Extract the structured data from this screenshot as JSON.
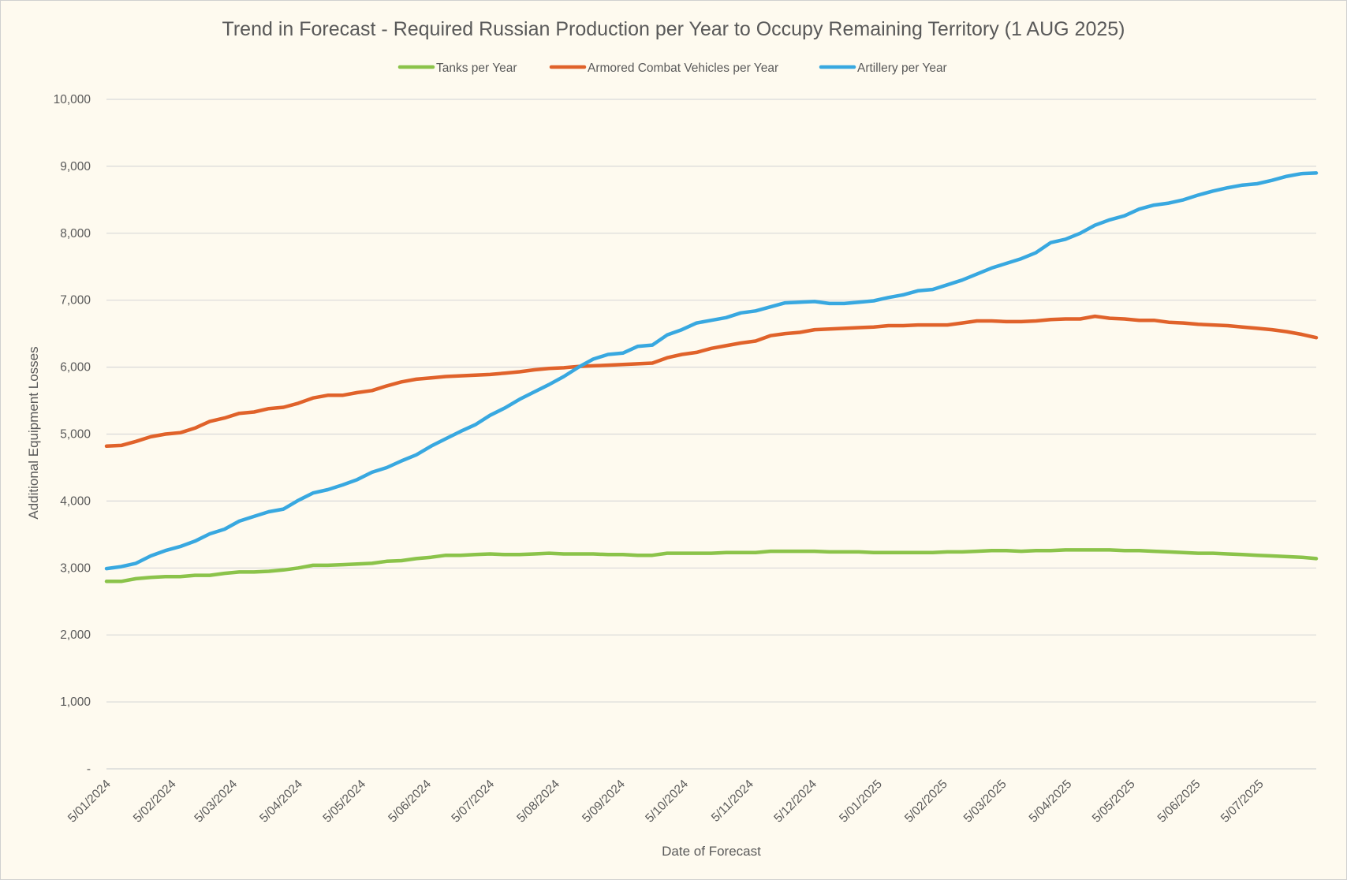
{
  "chart_data": {
    "type": "line",
    "title": "Trend in Forecast - Required Russian Production per Year to Occupy Remaining Territory (1 AUG 2025)",
    "xlabel": "Date of Forecast",
    "ylabel": "Additional Equipment Losses",
    "ylim": [
      0,
      10000
    ],
    "y_ticks": [
      0,
      1000,
      2000,
      3000,
      4000,
      5000,
      6000,
      7000,
      8000,
      9000,
      10000
    ],
    "y_tick_labels": [
      "-",
      "1,000",
      "2,000",
      "3,000",
      "4,000",
      "5,000",
      "6,000",
      "7,000",
      "8,000",
      "9,000",
      "10,000"
    ],
    "x_tick_labels": [
      "5/01/2024",
      "5/02/2024",
      "5/03/2024",
      "5/04/2024",
      "5/05/2024",
      "5/06/2024",
      "5/07/2024",
      "5/08/2024",
      "5/09/2024",
      "5/10/2024",
      "5/11/2024",
      "5/12/2024",
      "5/01/2025",
      "5/02/2025",
      "5/03/2025",
      "5/04/2025",
      "5/05/2025",
      "5/06/2025",
      "5/07/2025"
    ],
    "x_tick_dates": [
      "2024-01-05",
      "2024-02-05",
      "2024-03-05",
      "2024-04-05",
      "2024-05-05",
      "2024-06-05",
      "2024-07-05",
      "2024-08-05",
      "2024-09-05",
      "2024-10-05",
      "2024-11-05",
      "2024-12-05",
      "2025-01-05",
      "2025-02-05",
      "2025-03-05",
      "2025-04-05",
      "2025-05-05",
      "2025-06-05",
      "2025-07-05"
    ],
    "x_range": [
      "2024-01-05",
      "2025-08-01"
    ],
    "grid": "horizontal",
    "legend_position": "top",
    "x": [
      "2024-01-05",
      "2024-01-12",
      "2024-01-19",
      "2024-01-26",
      "2024-02-02",
      "2024-02-09",
      "2024-02-16",
      "2024-02-23",
      "2024-03-01",
      "2024-03-08",
      "2024-03-15",
      "2024-03-22",
      "2024-03-29",
      "2024-04-05",
      "2024-04-12",
      "2024-04-19",
      "2024-04-26",
      "2024-05-03",
      "2024-05-10",
      "2024-05-17",
      "2024-05-24",
      "2024-05-31",
      "2024-06-07",
      "2024-06-14",
      "2024-06-21",
      "2024-06-28",
      "2024-07-05",
      "2024-07-12",
      "2024-07-19",
      "2024-07-26",
      "2024-08-02",
      "2024-08-09",
      "2024-08-16",
      "2024-08-23",
      "2024-08-30",
      "2024-09-06",
      "2024-09-13",
      "2024-09-20",
      "2024-09-27",
      "2024-10-04",
      "2024-10-11",
      "2024-10-18",
      "2024-10-25",
      "2024-11-01",
      "2024-11-08",
      "2024-11-15",
      "2024-11-22",
      "2024-11-29",
      "2024-12-06",
      "2024-12-13",
      "2024-12-20",
      "2024-12-27",
      "2025-01-03",
      "2025-01-10",
      "2025-01-17",
      "2025-01-24",
      "2025-01-31",
      "2025-02-07",
      "2025-02-14",
      "2025-02-21",
      "2025-02-28",
      "2025-03-07",
      "2025-03-14",
      "2025-03-21",
      "2025-03-28",
      "2025-04-04",
      "2025-04-11",
      "2025-04-18",
      "2025-04-25",
      "2025-05-02",
      "2025-05-09",
      "2025-05-16",
      "2025-05-23",
      "2025-05-30",
      "2025-06-06",
      "2025-06-13",
      "2025-06-20",
      "2025-06-27",
      "2025-07-04",
      "2025-07-11",
      "2025-07-18",
      "2025-07-25",
      "2025-08-01"
    ],
    "series": [
      {
        "name": "Tanks per Year",
        "color": "#8bc34a",
        "values": [
          2800,
          2800,
          2840,
          2860,
          2870,
          2870,
          2890,
          2890,
          2920,
          2940,
          2940,
          2950,
          2970,
          3000,
          3040,
          3040,
          3050,
          3060,
          3070,
          3100,
          3110,
          3140,
          3160,
          3190,
          3190,
          3200,
          3210,
          3200,
          3200,
          3210,
          3220,
          3210,
          3210,
          3210,
          3200,
          3200,
          3190,
          3190,
          3220,
          3220,
          3220,
          3220,
          3230,
          3230,
          3230,
          3250,
          3250,
          3250,
          3250,
          3240,
          3240,
          3240,
          3230,
          3230,
          3230,
          3230,
          3230,
          3240,
          3240,
          3250,
          3260,
          3260,
          3250,
          3260,
          3260,
          3270,
          3270,
          3270,
          3270,
          3260,
          3260,
          3250,
          3240,
          3230,
          3220,
          3220,
          3210,
          3200,
          3190,
          3180,
          3170,
          3160,
          3140
        ]
      },
      {
        "name": "Armored Combat Vehicles per Year",
        "color": "#e0622a",
        "values": [
          4820,
          4830,
          4890,
          4960,
          5000,
          5020,
          5090,
          5190,
          5240,
          5310,
          5330,
          5380,
          5400,
          5460,
          5540,
          5580,
          5580,
          5620,
          5650,
          5720,
          5780,
          5820,
          5840,
          5860,
          5870,
          5880,
          5890,
          5910,
          5930,
          5960,
          5980,
          5990,
          6010,
          6020,
          6030,
          6040,
          6050,
          6060,
          6140,
          6190,
          6220,
          6280,
          6320,
          6360,
          6390,
          6470,
          6500,
          6520,
          6560,
          6570,
          6580,
          6590,
          6600,
          6620,
          6620,
          6630,
          6630,
          6630,
          6660,
          6690,
          6690,
          6680,
          6680,
          6690,
          6710,
          6720,
          6720,
          6760,
          6730,
          6720,
          6700,
          6700,
          6670,
          6660,
          6640,
          6630,
          6620,
          6600,
          6580,
          6560,
          6530,
          6490,
          6440
        ]
      },
      {
        "name": "Artillery per Year",
        "color": "#38a8e0",
        "values": [
          2990,
          3020,
          3070,
          3180,
          3260,
          3320,
          3400,
          3510,
          3580,
          3700,
          3770,
          3840,
          3880,
          4010,
          4120,
          4170,
          4240,
          4320,
          4430,
          4500,
          4600,
          4690,
          4820,
          4930,
          5040,
          5140,
          5280,
          5390,
          5520,
          5630,
          5740,
          5860,
          6000,
          6120,
          6190,
          6210,
          6310,
          6330,
          6480,
          6560,
          6660,
          6700,
          6740,
          6810,
          6840,
          6900,
          6960,
          6970,
          6980,
          6950,
          6950,
          6970,
          6990,
          7040,
          7080,
          7140,
          7160,
          7230,
          7300,
          7390,
          7480,
          7550,
          7620,
          7710,
          7860,
          7910,
          8000,
          8120,
          8200,
          8260,
          8360,
          8420,
          8450,
          8500,
          8570,
          8630,
          8680,
          8720,
          8740,
          8790,
          8850,
          8890,
          8900
        ]
      }
    ]
  }
}
